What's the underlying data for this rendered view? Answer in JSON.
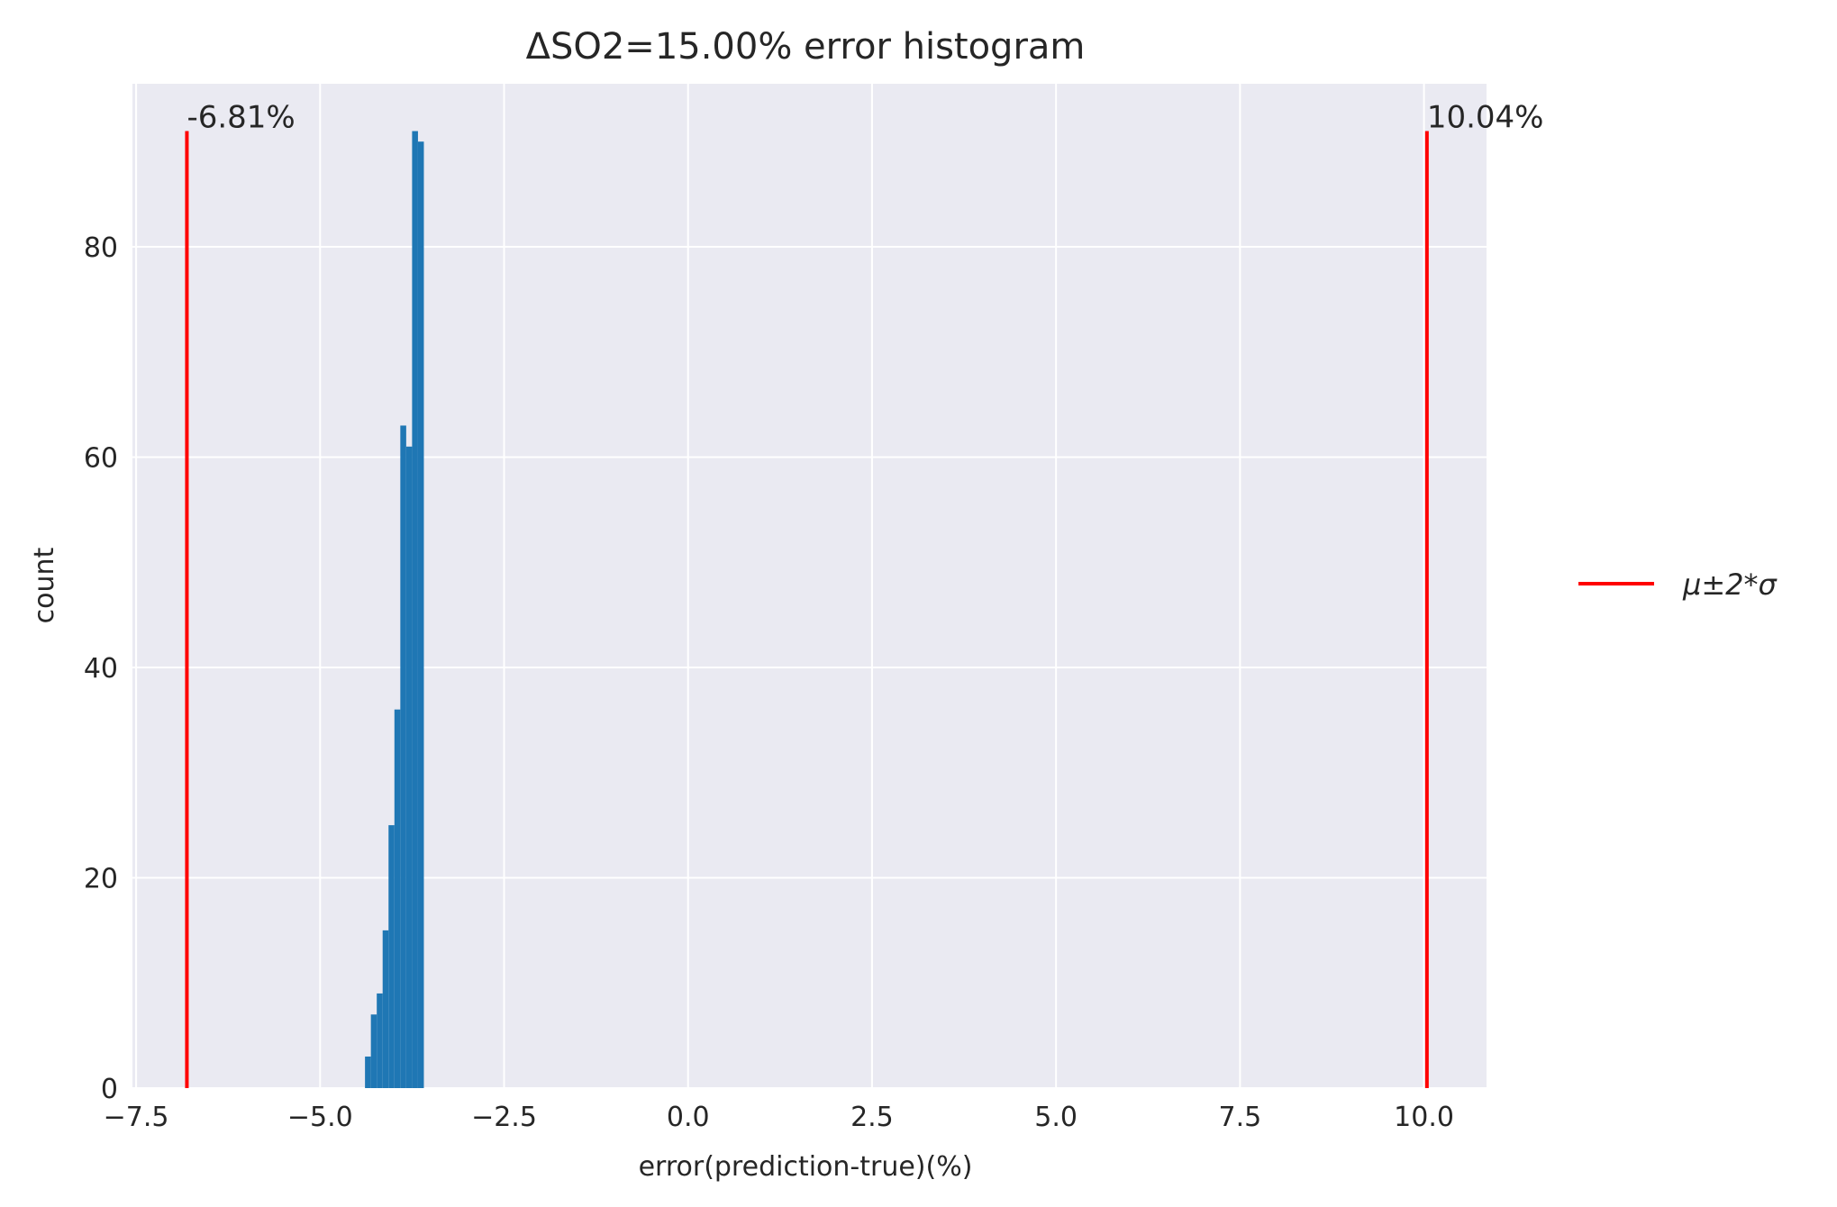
{
  "chart_data": {
    "type": "bar",
    "title": "ΔSO2=15.00% error histogram",
    "xlabel": "error(prediction-true)(%)",
    "ylabel": "count",
    "xlim": [
      -7.55,
      10.85
    ],
    "ylim": [
      0,
      95.5
    ],
    "grid": true,
    "legend_position": "right",
    "x_ticks": [
      -7.5,
      -5.0,
      -2.5,
      0.0,
      2.5,
      5.0,
      7.5,
      10.0
    ],
    "x_tick_labels": [
      "−7.5",
      "−5.0",
      "−2.5",
      "0.0",
      "2.5",
      "5.0",
      "7.5",
      "10.0"
    ],
    "y_ticks": [
      0,
      20,
      40,
      60,
      80
    ],
    "y_tick_labels": [
      "0",
      "20",
      "40",
      "60",
      "80"
    ],
    "bin_width": 0.08,
    "bins": [
      {
        "left": -4.39,
        "count": 3
      },
      {
        "left": -4.31,
        "count": 7
      },
      {
        "left": -4.23,
        "count": 9
      },
      {
        "left": -4.15,
        "count": 15
      },
      {
        "left": -4.07,
        "count": 25
      },
      {
        "left": -3.99,
        "count": 36
      },
      {
        "left": -3.91,
        "count": 63
      },
      {
        "left": -3.83,
        "count": 61
      },
      {
        "left": -3.75,
        "count": 91
      },
      {
        "left": -3.67,
        "count": 90
      }
    ],
    "bar_color": "#1f77b4",
    "vlines": [
      {
        "x": -6.81,
        "ymax": 91,
        "label": "-6.81%"
      },
      {
        "x": 10.04,
        "ymax": 91,
        "label": "10.04%"
      }
    ],
    "vline_color": "#ff0000",
    "plot_background": "#eaeaf2",
    "legend": [
      {
        "label": "μ±2*σ",
        "color": "#ff0000"
      }
    ]
  }
}
